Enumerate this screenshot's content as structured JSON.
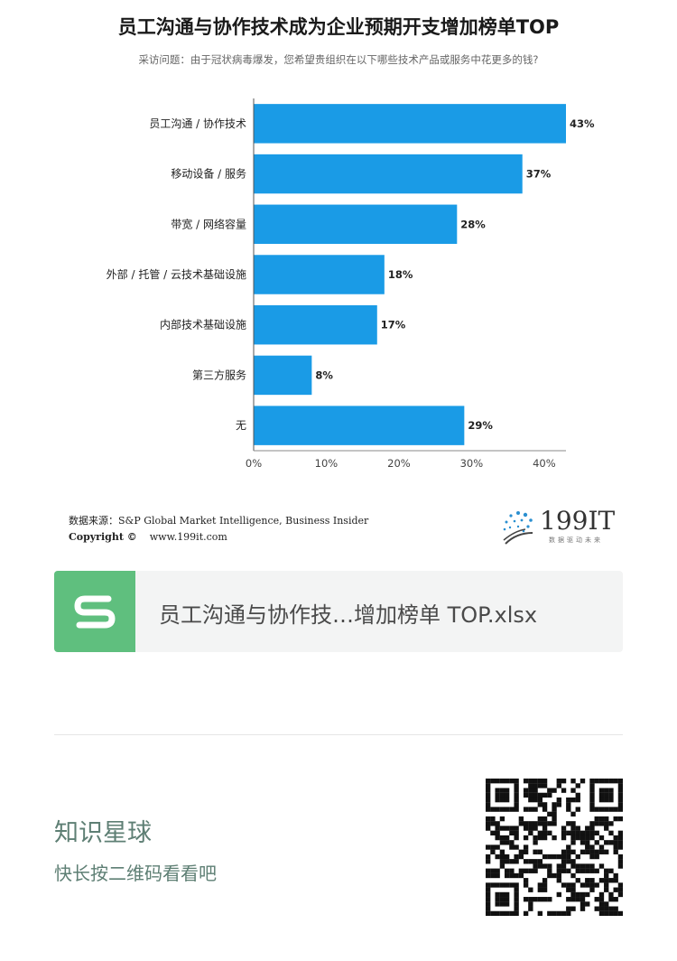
{
  "chart_data": {
    "type": "bar",
    "orientation": "horizontal",
    "title": "员工沟通与协作技术成为企业预期开支增加榜单TOP",
    "subtitle": "采访问题：由于冠状病毒爆发，您希望贵组织在以下哪些技术产品或服务中花更多的钱?",
    "categories": [
      "员工沟通 / 协作技术",
      "移动设备 / 服务",
      "带宽 / 网络容量",
      "外部 / 托管 / 云技术基础设施",
      "内部技术基础设施",
      "第三方服务",
      "无"
    ],
    "values": [
      43,
      37,
      28,
      18,
      17,
      8,
      29
    ],
    "value_labels": [
      "43%",
      "37%",
      "28%",
      "18%",
      "17%",
      "8%",
      "29%"
    ],
    "xlim": [
      0,
      43
    ],
    "xticks": [
      0,
      10,
      20,
      30,
      40
    ],
    "xtick_labels": [
      "0%",
      "10%",
      "20%",
      "30%",
      "40%"
    ],
    "bar_color": "#1a9be6",
    "grid": false
  },
  "footer": {
    "source": "数据来源：S&P Global Market Intelligence, Business Insider",
    "copyright_label": "Copyright ©",
    "url": "www.199it.com",
    "logo_text": "199IT",
    "logo_tagline": "数据驱动未来"
  },
  "file_card": {
    "icon": "spreadsheet-s-icon",
    "icon_color": "#5fbf7e",
    "filename": "员工沟通与协作技…增加榜单 TOP.xlsx"
  },
  "planet": {
    "title": "知识星球",
    "hint": "快长按二维码看看吧",
    "qr_icon": "qr-code-icon"
  }
}
